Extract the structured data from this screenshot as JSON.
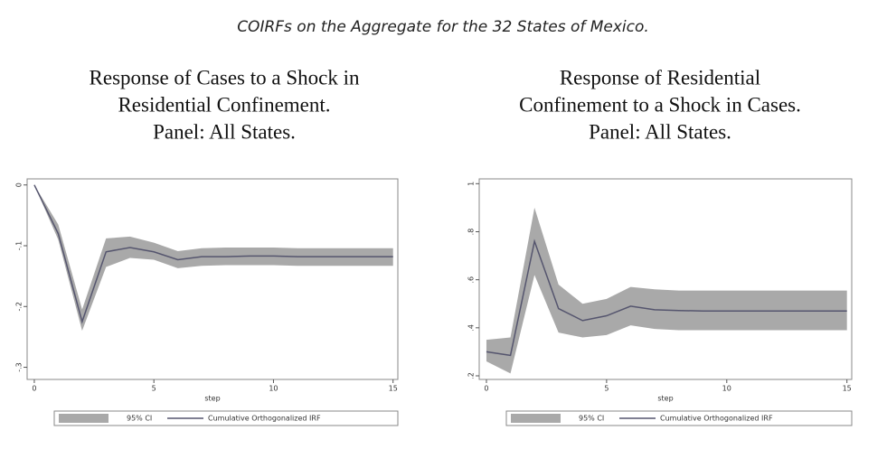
{
  "caption": "COIRFs on the Aggregate for the 32 States of Mexico.",
  "chart_data": [
    {
      "type": "line",
      "title": [
        "Response of Cases to a Shock in",
        "Residential Confinement.",
        "Panel: All States."
      ],
      "xlabel": "step",
      "x": [
        0,
        1,
        2,
        3,
        4,
        5,
        6,
        7,
        8,
        9,
        10,
        11,
        12,
        13,
        14,
        15
      ],
      "xlim": [
        -0.3,
        15.2
      ],
      "xticks": [
        0,
        5,
        10,
        15
      ],
      "ylim": [
        -0.32,
        0.01
      ],
      "yticks": [
        0,
        {
          "value": -0.1,
          "label": "-.1"
        },
        {
          "value": -0.2,
          "label": "-.2"
        },
        {
          "value": -0.3,
          "label": "-.3"
        }
      ],
      "series": [
        {
          "name": "95% CI",
          "color": "#a9a9a9",
          "upper": [
            0,
            -0.065,
            -0.205,
            -0.088,
            -0.085,
            -0.095,
            -0.109,
            -0.104,
            -0.103,
            -0.103,
            -0.103,
            -0.104,
            -0.104,
            -0.104,
            -0.104,
            -0.104
          ],
          "lower": [
            0,
            -0.09,
            -0.24,
            -0.135,
            -0.12,
            -0.123,
            -0.137,
            -0.133,
            -0.132,
            -0.132,
            -0.132,
            -0.133,
            -0.133,
            -0.133,
            -0.133,
            -0.133
          ]
        },
        {
          "name": "Cumulative Orthogonalized IRF",
          "color": "#55556e",
          "values": [
            0,
            -0.08,
            -0.225,
            -0.11,
            -0.103,
            -0.11,
            -0.123,
            -0.118,
            -0.118,
            -0.117,
            -0.117,
            -0.118,
            -0.118,
            -0.118,
            -0.118,
            -0.118
          ]
        }
      ]
    },
    {
      "type": "line",
      "title": [
        "Response of Residential",
        "Confinement to a Shock in Cases.",
        "Panel: All States."
      ],
      "xlabel": "step",
      "x": [
        0,
        1,
        2,
        3,
        4,
        5,
        6,
        7,
        8,
        9,
        10,
        11,
        12,
        13,
        14,
        15
      ],
      "xlim": [
        -0.3,
        15.2
      ],
      "xticks": [
        0,
        5,
        10,
        15
      ],
      "ylim": [
        0.185,
        1.02
      ],
      "yticks": [
        1,
        {
          "value": 0.8,
          "label": ".8"
        },
        {
          "value": 0.6,
          "label": ".6"
        },
        {
          "value": 0.4,
          "label": ".4"
        },
        {
          "value": 0.2,
          "label": ".2"
        }
      ],
      "series": [
        {
          "name": "95% CI",
          "color": "#a9a9a9",
          "upper": [
            0.35,
            0.36,
            0.9,
            0.58,
            0.5,
            0.52,
            0.57,
            0.56,
            0.555,
            0.555,
            0.555,
            0.555,
            0.555,
            0.555,
            0.555,
            0.555
          ],
          "lower": [
            0.26,
            0.21,
            0.62,
            0.38,
            0.36,
            0.37,
            0.41,
            0.395,
            0.39,
            0.39,
            0.39,
            0.39,
            0.39,
            0.39,
            0.39,
            0.39
          ]
        },
        {
          "name": "Cumulative Orthogonalized IRF",
          "color": "#55556e",
          "values": [
            0.3,
            0.285,
            0.76,
            0.48,
            0.43,
            0.45,
            0.49,
            0.475,
            0.472,
            0.47,
            0.47,
            0.47,
            0.47,
            0.47,
            0.47,
            0.47
          ]
        }
      ]
    }
  ]
}
